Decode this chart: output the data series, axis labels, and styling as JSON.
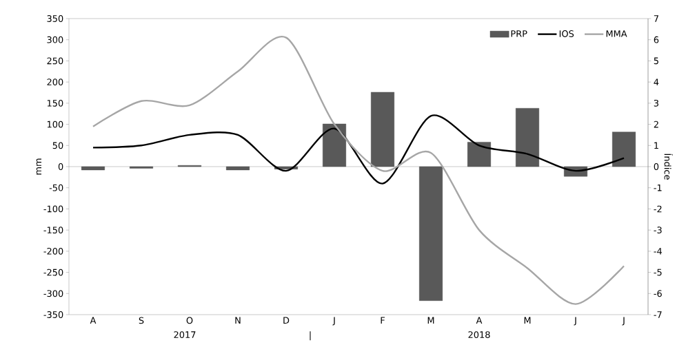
{
  "chart_data": {
    "type": "bar",
    "categories": [
      "A",
      "S",
      "O",
      "N",
      "D",
      "J",
      "F",
      "M",
      "A",
      "M",
      "J",
      "J"
    ],
    "series": [
      {
        "name": "PRP",
        "color": "#595959",
        "values": [
          -8,
          -4,
          3,
          -8,
          -6,
          101,
          176,
          -317,
          58,
          138,
          -23,
          82
        ]
      },
      {
        "name": "IOS",
        "type": "line",
        "axis": "y2",
        "color": "#000000",
        "values": [
          0.9,
          1.0,
          1.5,
          1.5,
          -0.2,
          1.8,
          -0.8,
          2.4,
          1.0,
          0.6,
          -0.2,
          0.4
        ]
      },
      {
        "name": "MMA",
        "type": "line",
        "axis": "y2",
        "color": "#a6a6a6",
        "values": [
          1.9,
          3.1,
          2.9,
          4.5,
          6.1,
          2.0,
          -0.2,
          0.65,
          -3.0,
          -4.8,
          -6.5,
          -4.7
        ]
      }
    ],
    "ylabel": "mm",
    "y2label": "Índice",
    "ylim": [
      -350,
      350
    ],
    "yticks": [
      -350,
      -300,
      -250,
      -200,
      -150,
      -100,
      -50,
      0,
      50,
      100,
      150,
      200,
      250,
      300,
      350
    ],
    "y2lim": [
      -7,
      7
    ],
    "y2ticks": [
      -7,
      -6,
      -5,
      -4,
      -3,
      -2,
      -1,
      0,
      1,
      2,
      3,
      4,
      5,
      6,
      7
    ],
    "annotations": [
      "2017",
      "|",
      "2018"
    ],
    "legend": "top right",
    "marker": "none",
    "line_style": "solid"
  }
}
